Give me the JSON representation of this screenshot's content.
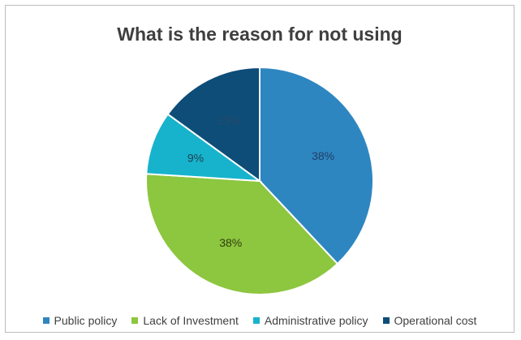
{
  "chart_data": {
    "type": "pie",
    "title": "What is the reason for not using",
    "categories": [
      "Public policy",
      "Lack of Investment",
      "Administrative policy",
      "Operational cost"
    ],
    "values": [
      38,
      38,
      9,
      15
    ],
    "labels": [
      "38%",
      "38%",
      "9%",
      "15%"
    ],
    "colors": [
      "#2e86c1",
      "#8dc63f",
      "#17b3cc",
      "#0d4d78"
    ],
    "legend_position": "bottom"
  }
}
